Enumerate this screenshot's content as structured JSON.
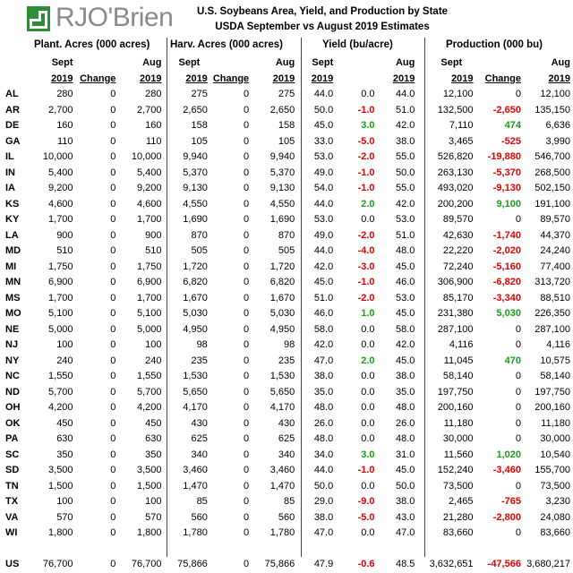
{
  "logo": {
    "brand": "RJO'Brien"
  },
  "title": {
    "line1": "U.S. Soybeans Area, Yield, and Production by State",
    "line2": "USDA September vs August 2019 Estimates"
  },
  "groups": {
    "plant": "Plant. Acres (000 acres)",
    "harv": "Harv. Acres (000 acres)",
    "yield": "Yield (bu/acre)",
    "prod": "Production (000 bu)"
  },
  "sub": {
    "sept": "Sept",
    "aug": "Aug",
    "year": "2019",
    "change": "Change"
  },
  "rows": [
    [
      "AL",
      "280",
      "0",
      "280",
      "275",
      "0",
      "275",
      "44.0",
      "0.0",
      "44.0",
      "12,100",
      "0",
      "12,100"
    ],
    [
      "AR",
      "2,700",
      "0",
      "2,700",
      "2,650",
      "0",
      "2,650",
      "50.0",
      "-1.0",
      "51.0",
      "132,500",
      "-2,650",
      "135,150"
    ],
    [
      "DE",
      "160",
      "0",
      "160",
      "158",
      "0",
      "158",
      "45.0",
      "3.0",
      "42.0",
      "7,110",
      "474",
      "6,636"
    ],
    [
      "GA",
      "110",
      "0",
      "110",
      "105",
      "0",
      "105",
      "33.0",
      "-5.0",
      "38.0",
      "3,465",
      "-525",
      "3,990"
    ],
    [
      "IL",
      "10,000",
      "0",
      "10,000",
      "9,940",
      "0",
      "9,940",
      "53.0",
      "-2.0",
      "55.0",
      "526,820",
      "-19,880",
      "546,700"
    ],
    [
      "IN",
      "5,400",
      "0",
      "5,400",
      "5,370",
      "0",
      "5,370",
      "49.0",
      "-1.0",
      "50.0",
      "263,130",
      "-5,370",
      "268,500"
    ],
    [
      "IA",
      "9,200",
      "0",
      "9,200",
      "9,130",
      "0",
      "9,130",
      "54.0",
      "-1.0",
      "55.0",
      "493,020",
      "-9,130",
      "502,150"
    ],
    [
      "KS",
      "4,600",
      "0",
      "4,600",
      "4,550",
      "0",
      "4,550",
      "44.0",
      "2.0",
      "42.0",
      "200,200",
      "9,100",
      "191,100"
    ],
    [
      "KY",
      "1,700",
      "0",
      "1,700",
      "1,690",
      "0",
      "1,690",
      "53.0",
      "0.0",
      "53.0",
      "89,570",
      "0",
      "89,570"
    ],
    [
      "LA",
      "900",
      "0",
      "900",
      "870",
      "0",
      "870",
      "49.0",
      "-2.0",
      "51.0",
      "42,630",
      "-1,740",
      "44,370"
    ],
    [
      "MD",
      "510",
      "0",
      "510",
      "505",
      "0",
      "505",
      "44.0",
      "-4.0",
      "48.0",
      "22,220",
      "-2,020",
      "24,240"
    ],
    [
      "MI",
      "1,750",
      "0",
      "1,750",
      "1,720",
      "0",
      "1,720",
      "42.0",
      "-3.0",
      "45.0",
      "72,240",
      "-5,160",
      "77,400"
    ],
    [
      "MN",
      "6,900",
      "0",
      "6,900",
      "6,820",
      "0",
      "6,820",
      "45.0",
      "-1.0",
      "46.0",
      "306,900",
      "-6,820",
      "313,720"
    ],
    [
      "MS",
      "1,700",
      "0",
      "1,700",
      "1,670",
      "0",
      "1,670",
      "51.0",
      "-2.0",
      "53.0",
      "85,170",
      "-3,340",
      "88,510"
    ],
    [
      "MO",
      "5,100",
      "0",
      "5,100",
      "5,030",
      "0",
      "5,030",
      "46.0",
      "1.0",
      "45.0",
      "231,380",
      "5,030",
      "226,350"
    ],
    [
      "NE",
      "5,000",
      "0",
      "5,000",
      "4,950",
      "0",
      "4,950",
      "58.0",
      "0.0",
      "58.0",
      "287,100",
      "0",
      "287,100"
    ],
    [
      "NJ",
      "100",
      "0",
      "100",
      "98",
      "0",
      "98",
      "42.0",
      "0.0",
      "42.0",
      "4,116",
      "0",
      "4,116"
    ],
    [
      "NY",
      "240",
      "0",
      "240",
      "235",
      "0",
      "235",
      "47.0",
      "2.0",
      "45.0",
      "11,045",
      "470",
      "10,575"
    ],
    [
      "NC",
      "1,550",
      "0",
      "1,550",
      "1,530",
      "0",
      "1,530",
      "38.0",
      "0.0",
      "38.0",
      "58,140",
      "0",
      "58,140"
    ],
    [
      "ND",
      "5,700",
      "0",
      "5,700",
      "5,650",
      "0",
      "5,650",
      "35.0",
      "0.0",
      "35.0",
      "197,750",
      "0",
      "197,750"
    ],
    [
      "OH",
      "4,200",
      "0",
      "4,200",
      "4,170",
      "0",
      "4,170",
      "48.0",
      "0.0",
      "48.0",
      "200,160",
      "0",
      "200,160"
    ],
    [
      "OK",
      "450",
      "0",
      "450",
      "430",
      "0",
      "430",
      "26.0",
      "0.0",
      "26.0",
      "11,180",
      "0",
      "11,180"
    ],
    [
      "PA",
      "630",
      "0",
      "630",
      "625",
      "0",
      "625",
      "48.0",
      "0.0",
      "48.0",
      "30,000",
      "0",
      "30,000"
    ],
    [
      "SC",
      "350",
      "0",
      "350",
      "340",
      "0",
      "340",
      "34.0",
      "3.0",
      "31.0",
      "11,560",
      "1,020",
      "10,540"
    ],
    [
      "SD",
      "3,500",
      "0",
      "3,500",
      "3,460",
      "0",
      "3,460",
      "44.0",
      "-1.0",
      "45.0",
      "152,240",
      "-3,460",
      "155,700"
    ],
    [
      "TN",
      "1,500",
      "0",
      "1,500",
      "1,470",
      "0",
      "1,470",
      "50.0",
      "0.0",
      "50.0",
      "73,500",
      "0",
      "73,500"
    ],
    [
      "TX",
      "100",
      "0",
      "100",
      "85",
      "0",
      "85",
      "29.0",
      "-9.0",
      "38.0",
      "2,465",
      "-765",
      "3,230"
    ],
    [
      "VA",
      "570",
      "0",
      "570",
      "560",
      "0",
      "560",
      "38.0",
      "-5.0",
      "43.0",
      "21,280",
      "-2,800",
      "24,080"
    ],
    [
      "WI",
      "1,800",
      "0",
      "1,800",
      "1,780",
      "0",
      "1,780",
      "47.0",
      "0.0",
      "47.0",
      "83,660",
      "0",
      "83,660"
    ]
  ],
  "total": [
    "US",
    "76,700",
    "0",
    "76,700",
    "75,866",
    "0",
    "75,866",
    "47.9",
    "-0.6",
    "48.5",
    "3,632,651",
    "-47,566",
    "3,680,217"
  ],
  "colors": {
    "negative": "#e00000",
    "positive": "#1a9c1a",
    "logo_green": "#2e8b3a",
    "logo_gray": "#8a8a8a"
  }
}
